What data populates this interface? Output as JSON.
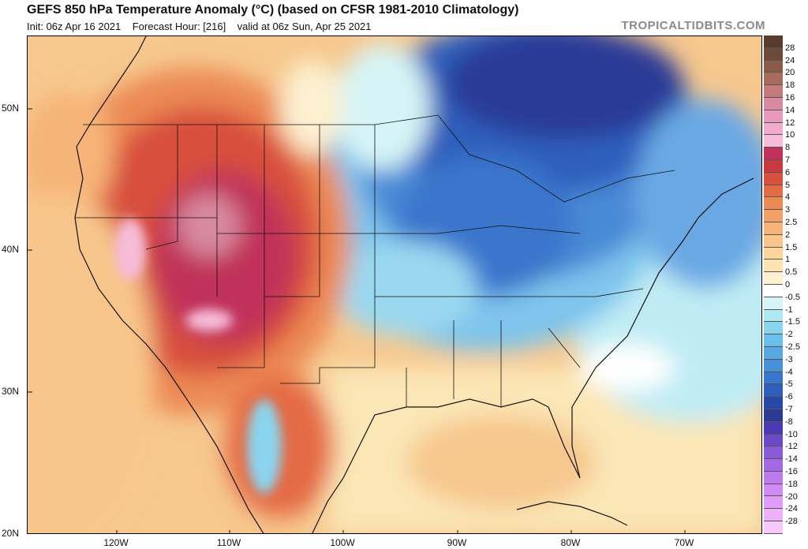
{
  "header": {
    "title": "GEFS 850 hPa Temperature Anomaly (°C) (based on CFSR 1981-2010 Climatology)",
    "init": "Init: 06z Apr 16 2021",
    "forecast_hour": "Forecast Hour: [216]",
    "valid": "valid at 06z Sun, Apr 25 2021",
    "brand": "TROPICALTIDBITS.COM"
  },
  "axes": {
    "lat_labels": [
      "50N",
      "40N",
      "30N",
      "20N"
    ],
    "lon_labels": [
      "120W",
      "110W",
      "100W",
      "90W",
      "80W",
      "70W"
    ]
  },
  "colorbar": {
    "labels": [
      "28",
      "24",
      "20",
      "18",
      "16",
      "14",
      "12",
      "10",
      "8",
      "7",
      "6",
      "5",
      "4",
      "3",
      "2.5",
      "2",
      "1.5",
      "1",
      "0.5",
      "0",
      "-0.5",
      "-1",
      "-1.5",
      "-2",
      "-2.5",
      "-3",
      "-4",
      "-5",
      "-6",
      "-7",
      "-8",
      "-10",
      "-12",
      "-14",
      "-16",
      "-18",
      "-20",
      "-24",
      "-28"
    ],
    "colors": [
      "#6b4a3a",
      "#8c5a48",
      "#a86a5c",
      "#c47a7a",
      "#d88aa0",
      "#e49ab8",
      "#f0aacc",
      "#f6bcd8",
      "#c0305a",
      "#c83a40",
      "#d8503c",
      "#e46a44",
      "#ec8a54",
      "#f2a066",
      "#f6b478",
      "#f8c68a",
      "#fad69c",
      "#fbe2b0",
      "#fdf0d0",
      "#ffffff",
      "#d6f4f6",
      "#aee8f2",
      "#8ad4ee",
      "#6ac0ea",
      "#58a8e2",
      "#4890d8",
      "#3a76cc",
      "#2e5ebc",
      "#2648a8",
      "#2a3a96",
      "#4a3ab4",
      "#6a4ac8",
      "#8a5ad8",
      "#a46ae4",
      "#bc7aee",
      "#d08af4",
      "#e09cf8",
      "#eeb0fa",
      "#f8c8fb"
    ]
  }
}
